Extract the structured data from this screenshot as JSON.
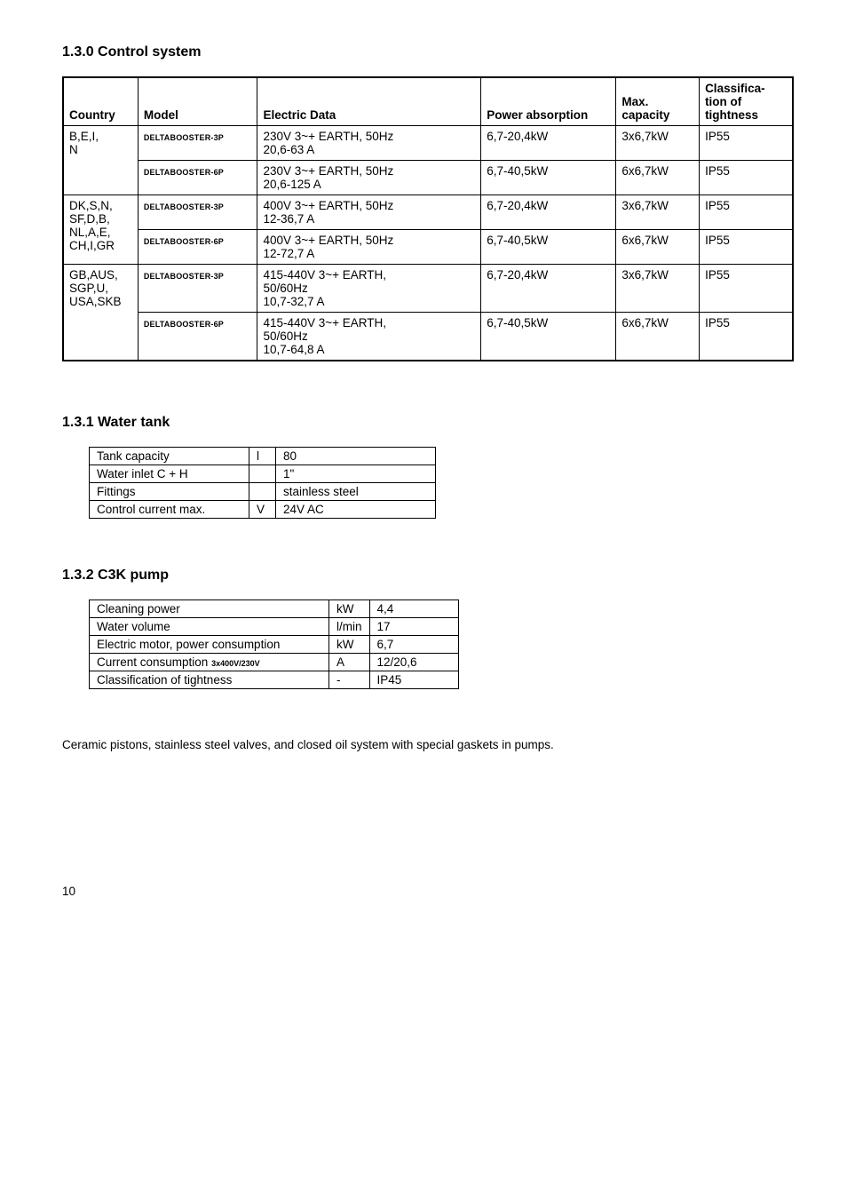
{
  "section130": {
    "heading": "1.3.0   Control system",
    "headers": {
      "country": "Country",
      "model": "Model",
      "electric": "Electric Data",
      "power": "Power absorption",
      "max": "Max. capacity",
      "class": "Classifica-tion of tightness"
    },
    "rows": [
      {
        "country": "B,E,I,\nN",
        "subrows": [
          {
            "model_small": "DELTABOOSTER-3P",
            "electric": "230V 3~+ EARTH, 50Hz\n20,6-63 A",
            "power": "6,7-20,4kW",
            "max": "3x6,7kW",
            "cls": "IP55"
          },
          {
            "model_small": "DELTABOOSTER-6P",
            "electric": "230V 3~+ EARTH, 50Hz\n20,6-125 A",
            "power": "6,7-40,5kW",
            "max": "6x6,7kW",
            "cls": "IP55"
          }
        ]
      },
      {
        "country": "DK,S,N,\nSF,D,B,\nNL,A,E,\nCH,I,GR",
        "subrows": [
          {
            "model_small": "DELTABOOSTER-3P",
            "electric": "400V 3~+ EARTH, 50Hz\n12-36,7 A",
            "power": "6,7-20,4kW",
            "max": "3x6,7kW",
            "cls": "IP55"
          },
          {
            "model_small": "DELTABOOSTER-6P",
            "electric": "400V 3~+ EARTH, 50Hz\n12-72,7 A",
            "power": "6,7-40,5kW",
            "max": "6x6,7kW",
            "cls": "IP55"
          }
        ]
      },
      {
        "country": "GB,AUS,\nSGP,U,\nUSA,SKB",
        "subrows": [
          {
            "model_small": "DELTABOOSTER-3P",
            "electric": "415-440V 3~+ EARTH,\n50/60Hz\n10,7-32,7 A",
            "power": "6,7-20,4kW",
            "max": "3x6,7kW",
            "cls": "IP55"
          },
          {
            "model_small": "DELTABOOSTER-6P",
            "electric": "415-440V 3~+ EARTH,\n50/60Hz\n10,7-64,8 A",
            "power": "6,7-40,5kW",
            "max": "6x6,7kW",
            "cls": "IP55"
          }
        ]
      }
    ]
  },
  "section131": {
    "heading": "1.3.1   Water tank",
    "rows": [
      {
        "c0": "Tank capacity",
        "c1": "l",
        "c2": "80"
      },
      {
        "c0": "Water inlet C + H",
        "c1": "",
        "c2": "1\""
      },
      {
        "c0": "Fittings",
        "c1": "",
        "c2": "stainless steel"
      },
      {
        "c0": "Control current max.",
        "c1": "V",
        "c2": "24V AC"
      }
    ],
    "colwidths": [
      "180px",
      "30px",
      "180px"
    ]
  },
  "section132": {
    "heading": "1.3.2   C3K pump",
    "rows": [
      {
        "c0": "Cleaning power",
        "c1": "kW",
        "c2": "4,4"
      },
      {
        "c0": "Water volume",
        "c1": "l/min",
        "c2": "17"
      },
      {
        "c0": "Electric motor, power consumption",
        "c1": "kW",
        "c2": "6,7"
      },
      {
        "c0": "Current consumption",
        "c0_small": "3x400V/230V",
        "c1": "A",
        "c2": "12/20,6"
      },
      {
        "c0": "Classification of tightness",
        "c1": "-",
        "c2": "IP45"
      }
    ],
    "colwidths": [
      "270px",
      "45px",
      "100px"
    ]
  },
  "body_text": "Ceramic pistons, stainless steel valves, and closed oil system with special gaskets in pumps.",
  "page_number": "10"
}
